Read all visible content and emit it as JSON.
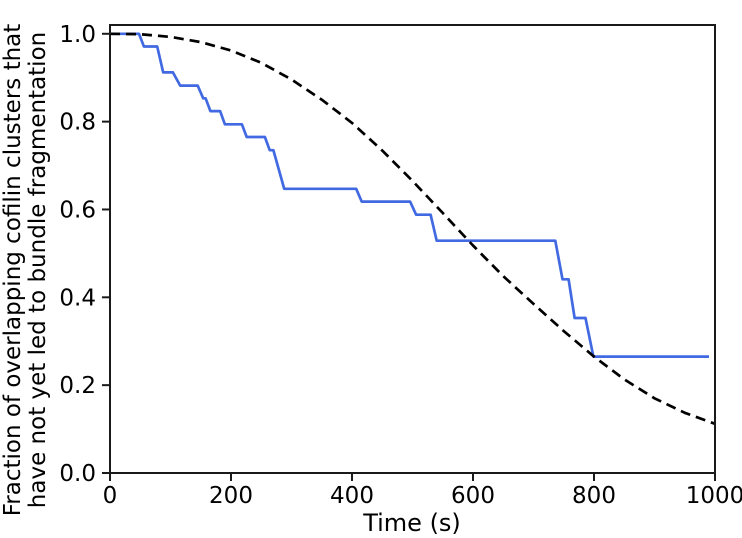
{
  "chart_data": {
    "type": "line",
    "title": "",
    "xlabel": "Time (s)",
    "ylabel_lines": [
      "Fraction of overlapping cofilin clusters that",
      "have not yet led to bundle fragmentation"
    ],
    "xlim": [
      0,
      1000
    ],
    "ylim": [
      0,
      1.02
    ],
    "x_ticks": {
      "values": [
        0,
        200,
        400,
        600,
        800,
        1000
      ],
      "labels": [
        "0",
        "200",
        "400",
        "600",
        "800",
        "1000"
      ]
    },
    "y_ticks": {
      "values": [
        0.0,
        0.2,
        0.4,
        0.6,
        0.8,
        1.0
      ],
      "labels": [
        "0.0",
        "0.2",
        "0.4",
        "0.6",
        "0.8",
        "1.0"
      ]
    },
    "grid": false,
    "legend": null,
    "axis_color": "#1a1a1a",
    "series": [
      {
        "name": "empirical-fraction-step",
        "style": "solid",
        "color": "#4169E1",
        "line_width": 2.7,
        "points": [
          [
            0,
            1.0
          ],
          [
            48,
            1.0
          ],
          [
            56,
            0.971
          ],
          [
            78,
            0.971
          ],
          [
            88,
            0.912
          ],
          [
            104,
            0.912
          ],
          [
            116,
            0.882
          ],
          [
            145,
            0.882
          ],
          [
            154,
            0.853
          ],
          [
            158,
            0.853
          ],
          [
            166,
            0.824
          ],
          [
            182,
            0.824
          ],
          [
            190,
            0.794
          ],
          [
            218,
            0.794
          ],
          [
            226,
            0.765
          ],
          [
            256,
            0.765
          ],
          [
            264,
            0.735
          ],
          [
            270,
            0.735
          ],
          [
            288,
            0.647
          ],
          [
            407,
            0.647
          ],
          [
            416,
            0.618
          ],
          [
            496,
            0.618
          ],
          [
            506,
            0.588
          ],
          [
            530,
            0.588
          ],
          [
            540,
            0.529
          ],
          [
            736,
            0.529
          ],
          [
            748,
            0.441
          ],
          [
            758,
            0.441
          ],
          [
            768,
            0.353
          ],
          [
            786,
            0.353
          ],
          [
            799,
            0.265
          ],
          [
            990,
            0.265
          ]
        ]
      },
      {
        "name": "model-curve",
        "style": "dashed",
        "color": "#000000",
        "line_width": 2.7,
        "dash_pattern": [
          10,
          6
        ],
        "points": [
          [
            0,
            1.0
          ],
          [
            50,
            0.999
          ],
          [
            100,
            0.993
          ],
          [
            150,
            0.981
          ],
          [
            200,
            0.962
          ],
          [
            250,
            0.934
          ],
          [
            300,
            0.896
          ],
          [
            350,
            0.85
          ],
          [
            400,
            0.797
          ],
          [
            450,
            0.734
          ],
          [
            500,
            0.665
          ],
          [
            550,
            0.592
          ],
          [
            600,
            0.518
          ],
          [
            650,
            0.448
          ],
          [
            700,
            0.385
          ],
          [
            750,
            0.323
          ],
          [
            800,
            0.265
          ],
          [
            850,
            0.213
          ],
          [
            900,
            0.17
          ],
          [
            950,
            0.137
          ],
          [
            1000,
            0.112
          ]
        ]
      }
    ]
  }
}
